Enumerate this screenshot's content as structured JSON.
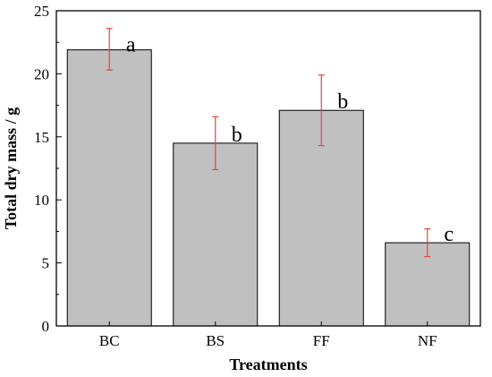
{
  "chart_data": {
    "type": "bar",
    "categories": [
      "BC",
      "BS",
      "FF",
      "NF"
    ],
    "values": [
      21.9,
      14.5,
      17.1,
      6.6
    ],
    "error_bars": [
      {
        "upper": 23.6,
        "lower": 20.3
      },
      {
        "upper": 16.6,
        "lower": 12.4
      },
      {
        "upper": 19.9,
        "lower": 14.3
      },
      {
        "upper": 7.7,
        "lower": 5.5
      }
    ],
    "annotations": [
      "a",
      "b",
      "b",
      "c"
    ],
    "xlabel": "Treatments",
    "ylabel": "Total dry mass  / g",
    "ylim": [
      0,
      25
    ],
    "yticks": [
      0,
      5,
      10,
      15,
      20,
      25
    ],
    "grid": false,
    "colors": {
      "bar_fill": "#c0c0c0",
      "bar_edge": "#000000",
      "error_bar": "#e8443a"
    }
  }
}
